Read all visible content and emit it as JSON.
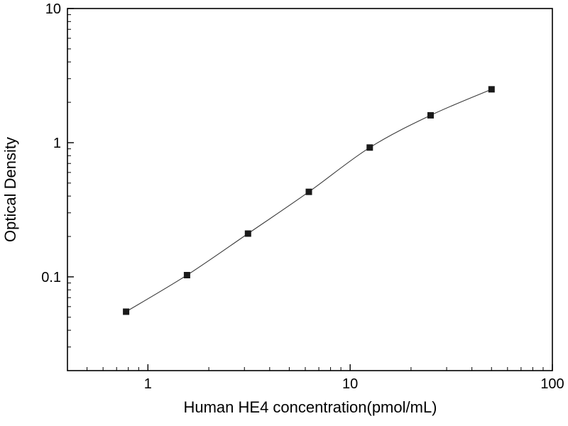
{
  "chart_data": {
    "type": "scatter",
    "title": "",
    "xlabel": "Human HE4 concentration(pmol/mL)",
    "ylabel": "Optical Density",
    "xscale": "log",
    "yscale": "log",
    "xlim": [
      0.4,
      100
    ],
    "ylim": [
      0.02,
      10
    ],
    "x_major_ticks": [
      1,
      10,
      100
    ],
    "x_major_tick_labels": [
      "1",
      "10",
      "100"
    ],
    "y_major_ticks": [
      0.1,
      1,
      10
    ],
    "y_major_tick_labels": [
      "0.1",
      "1",
      "10"
    ],
    "x": [
      0.78,
      1.56,
      3.125,
      6.25,
      12.5,
      25,
      50
    ],
    "y": [
      0.055,
      0.103,
      0.21,
      0.43,
      0.92,
      1.6,
      2.5
    ],
    "marker": "filled-square",
    "marker_color": "#1a1a1a",
    "marker_size": 9,
    "line_color": "#3a3a3a",
    "axis_color": "#000000",
    "grid": false,
    "legend": null
  }
}
